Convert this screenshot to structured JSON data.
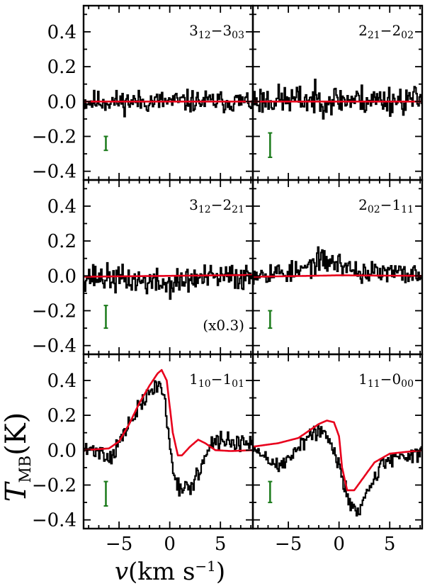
{
  "chart_data": {
    "type": "line",
    "layout": "3x2 grid of spectra panels with shared axes",
    "xlabel_main": "v",
    "xlabel_unit_pre": "(km s",
    "xlabel_unit_exp": "−1",
    "xlabel_unit_post": ")",
    "ylabel_main": "T",
    "ylabel_sub": "MB",
    "ylabel_unit": "(K)",
    "xlim": [
      -8.5,
      8.2
    ],
    "ylim": [
      -0.45,
      0.55
    ],
    "xticks": [
      -5,
      0,
      5
    ],
    "xtick_labels": [
      "−5",
      "0",
      "5"
    ],
    "yticks": [
      -0.4,
      -0.2,
      0.0,
      0.2,
      0.4
    ],
    "ytick_labels": [
      "−0.4",
      "−0.2",
      "0.0",
      "0.2",
      "0.4"
    ],
    "series_colors": {
      "observed": "#000000",
      "model": "#e8001c",
      "errorbar": "#1a7a1a"
    },
    "panels": [
      {
        "label_a": "3",
        "label_a_sub": "12",
        "label_b": "3",
        "label_b_sub": "03",
        "note": "",
        "noise": 0.045,
        "seed": 11,
        "observed_anchor_x": [
          -8.5,
          8.2
        ],
        "observed_anchor_y": [
          0.0,
          0.0
        ],
        "model_x": [
          -8.5,
          8.2
        ],
        "model_y": [
          0.0,
          0.0
        ],
        "errorbar": {
          "x": -6.3,
          "y_low": -0.28,
          "y_high": -0.2
        }
      },
      {
        "label_a": "2",
        "label_a_sub": "21",
        "label_b": "2",
        "label_b_sub": "02",
        "note": "",
        "noise": 0.06,
        "seed": 23,
        "observed_anchor_x": [
          -8.5,
          8.2
        ],
        "observed_anchor_y": [
          0.01,
          0.01
        ],
        "model_x": [
          -8.5,
          8.2
        ],
        "model_y": [
          0.0,
          0.0
        ],
        "errorbar": {
          "x": -6.8,
          "y_low": -0.32,
          "y_high": -0.18
        }
      },
      {
        "label_a": "3",
        "label_a_sub": "12",
        "label_b": "2",
        "label_b_sub": "21",
        "note": "(x0.3)",
        "noise": 0.055,
        "seed": 37,
        "observed_anchor_x": [
          -8.5,
          -3,
          0,
          2,
          8.2
        ],
        "observed_anchor_y": [
          0.0,
          -0.03,
          -0.05,
          -0.02,
          0.0
        ],
        "model_x": [
          -8.5,
          8.2
        ],
        "model_y": [
          -0.005,
          0.005
        ],
        "errorbar": {
          "x": -6.3,
          "y_low": -0.3,
          "y_high": -0.17
        }
      },
      {
        "label_a": "2",
        "label_a_sub": "02",
        "label_b": "1",
        "label_b_sub": "11",
        "note": "",
        "noise": 0.045,
        "seed": 53,
        "observed_anchor_x": [
          -8.5,
          -4,
          -2,
          0,
          2,
          8.2
        ],
        "observed_anchor_y": [
          0.02,
          0.02,
          0.09,
          0.07,
          0.02,
          0.01
        ],
        "model_x": [
          -8.5,
          -3,
          0,
          3,
          8.2
        ],
        "model_y": [
          -0.005,
          0.0,
          0.003,
          0.002,
          0.0
        ],
        "errorbar": {
          "x": -6.8,
          "y_low": -0.3,
          "y_high": -0.2
        }
      },
      {
        "label_a": "1",
        "label_a_sub": "10",
        "label_b": "1",
        "label_b_sub": "01",
        "note": "",
        "noise": 0.035,
        "seed": 71,
        "observed_anchor_x": [
          -8.5,
          -7,
          -6,
          -5,
          -4,
          -3,
          -2,
          -1.2,
          -0.6,
          0,
          0.5,
          1,
          2,
          3,
          4,
          5,
          6,
          8.2
        ],
        "observed_anchor_y": [
          0.0,
          0.0,
          -0.05,
          0.05,
          0.15,
          0.25,
          0.33,
          0.38,
          0.32,
          0.0,
          -0.15,
          -0.22,
          -0.22,
          -0.1,
          0.02,
          0.06,
          0.05,
          0.02
        ],
        "model_x": [
          -8.5,
          -6,
          -5,
          -4,
          -3,
          -2,
          -1.2,
          -0.8,
          -0.3,
          0.3,
          0.8,
          1.2,
          2,
          2.8,
          3.5,
          4.5,
          6,
          8.2
        ],
        "model_y": [
          0.0,
          0.01,
          0.05,
          0.15,
          0.27,
          0.37,
          0.44,
          0.46,
          0.4,
          0.1,
          -0.03,
          -0.03,
          0.02,
          0.06,
          0.04,
          0.0,
          -0.005,
          0.0
        ],
        "errorbar": {
          "x": -6.3,
          "y_low": -0.32,
          "y_high": -0.18
        }
      },
      {
        "label_a": "1",
        "label_a_sub": "11",
        "label_b": "0",
        "label_b_sub": "00",
        "note": "",
        "noise": 0.035,
        "seed": 89,
        "observed_anchor_x": [
          -8.5,
          -7,
          -6,
          -5,
          -4,
          -3,
          -2,
          -1,
          0,
          0.5,
          1,
          2,
          3,
          4,
          5,
          6,
          8.2
        ],
        "observed_anchor_y": [
          0.0,
          -0.05,
          -0.1,
          -0.05,
          0.03,
          0.08,
          0.12,
          0.05,
          -0.1,
          -0.2,
          -0.3,
          -0.35,
          -0.2,
          -0.1,
          -0.05,
          -0.03,
          -0.02
        ],
        "model_x": [
          -8.5,
          -6,
          -4,
          -3,
          -2,
          -1.2,
          -0.5,
          0,
          0.3,
          0.8,
          1.5,
          2.5,
          3.5,
          5,
          8.2
        ],
        "model_y": [
          0.02,
          0.04,
          0.07,
          0.11,
          0.15,
          0.17,
          0.16,
          0.08,
          -0.1,
          -0.23,
          -0.23,
          -0.15,
          -0.07,
          -0.02,
          0.0
        ],
        "errorbar": {
          "x": -6.8,
          "y_low": -0.3,
          "y_high": -0.18
        }
      }
    ]
  }
}
